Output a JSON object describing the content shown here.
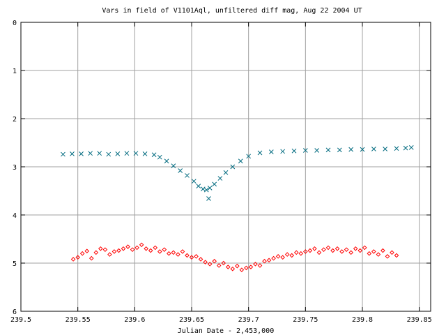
{
  "chart_data": {
    "type": "scatter",
    "title": "Vars in field of V1101Aql, unfiltered diff mag, Aug 22 2004 UT",
    "xlabel": "Julian Date - 2,453,000",
    "ylabel": "",
    "xlim": [
      239.5,
      239.86
    ],
    "ylim": [
      0,
      6
    ],
    "y_inverted": true,
    "grid": true,
    "x_ticks": [
      239.5,
      239.55,
      239.6,
      239.65,
      239.7,
      239.75,
      239.8,
      239.85
    ],
    "x_tick_labels": [
      "239.5",
      "239.55",
      "239.6",
      "239.65",
      "239.7",
      "239.75",
      "239.8",
      "239.85"
    ],
    "y_ticks": [
      0,
      1,
      2,
      3,
      4,
      5,
      6
    ],
    "y_tick_labels": [
      "0",
      "1",
      "2",
      "3",
      "4",
      "5",
      "6"
    ],
    "series": [
      {
        "marker": "x",
        "color": "#006a7f",
        "x": [
          239.537,
          239.545,
          239.553,
          239.561,
          239.569,
          239.577,
          239.585,
          239.593,
          239.601,
          239.609,
          239.617,
          239.622,
          239.628,
          239.634,
          239.64,
          239.646,
          239.652,
          239.656,
          239.66,
          239.663,
          239.666,
          239.67,
          239.675,
          239.68,
          239.686,
          239.693,
          239.7,
          239.71,
          239.72,
          239.73,
          239.74,
          239.75,
          239.76,
          239.77,
          239.78,
          239.79,
          239.8,
          239.81,
          239.82,
          239.83,
          239.838,
          239.843,
          239.665
        ],
        "y": [
          2.74,
          2.73,
          2.73,
          2.72,
          2.72,
          2.74,
          2.73,
          2.72,
          2.72,
          2.73,
          2.75,
          2.8,
          2.88,
          2.98,
          3.08,
          3.18,
          3.3,
          3.4,
          3.46,
          3.48,
          3.44,
          3.36,
          3.24,
          3.12,
          3.0,
          2.88,
          2.78,
          2.71,
          2.69,
          2.68,
          2.67,
          2.66,
          2.66,
          2.65,
          2.65,
          2.64,
          2.64,
          2.63,
          2.63,
          2.62,
          2.61,
          2.6,
          3.66
        ]
      },
      {
        "marker": "diamond",
        "color": "#ff0000",
        "x": [
          239.546,
          239.55,
          239.554,
          239.558,
          239.562,
          239.566,
          239.57,
          239.574,
          239.578,
          239.582,
          239.586,
          239.59,
          239.594,
          239.598,
          239.602,
          239.606,
          239.61,
          239.614,
          239.618,
          239.622,
          239.626,
          239.63,
          239.634,
          239.638,
          239.642,
          239.646,
          239.65,
          239.654,
          239.658,
          239.662,
          239.666,
          239.67,
          239.674,
          239.678,
          239.682,
          239.686,
          239.69,
          239.694,
          239.698,
          239.702,
          239.706,
          239.71,
          239.714,
          239.718,
          239.722,
          239.726,
          239.73,
          239.734,
          239.738,
          239.742,
          239.746,
          239.75,
          239.754,
          239.758,
          239.762,
          239.766,
          239.77,
          239.774,
          239.778,
          239.782,
          239.786,
          239.79,
          239.794,
          239.798,
          239.802,
          239.806,
          239.81,
          239.814,
          239.818,
          239.822,
          239.826,
          239.83
        ],
        "y": [
          4.92,
          4.88,
          4.8,
          4.75,
          4.9,
          4.78,
          4.7,
          4.72,
          4.82,
          4.76,
          4.74,
          4.7,
          4.66,
          4.72,
          4.68,
          4.62,
          4.7,
          4.74,
          4.68,
          4.76,
          4.72,
          4.8,
          4.78,
          4.82,
          4.76,
          4.84,
          4.88,
          4.86,
          4.92,
          4.98,
          5.02,
          4.96,
          5.05,
          5.0,
          5.08,
          5.12,
          5.06,
          5.14,
          5.1,
          5.08,
          5.02,
          5.05,
          4.96,
          4.94,
          4.9,
          4.86,
          4.88,
          4.82,
          4.84,
          4.78,
          4.8,
          4.76,
          4.74,
          4.7,
          4.78,
          4.72,
          4.68,
          4.74,
          4.7,
          4.76,
          4.72,
          4.78,
          4.7,
          4.74,
          4.68,
          4.8,
          4.76,
          4.82,
          4.74,
          4.86,
          4.78,
          4.84
        ]
      }
    ]
  }
}
